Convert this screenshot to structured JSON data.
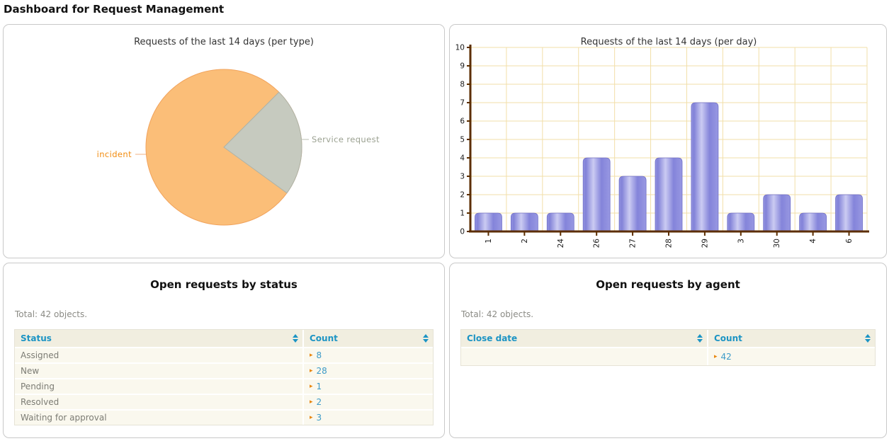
{
  "page_title": "Dashboard for Request Management",
  "pie_panel": {
    "title": "Requests of the last 14 days (per type)"
  },
  "bar_panel": {
    "title": "Requests of the last 14 days (per day)"
  },
  "status_panel": {
    "title": "Open requests by status",
    "total": "Total: 42 objects.",
    "columns": [
      "Status",
      "Count"
    ],
    "rows": [
      [
        "Assigned",
        "8"
      ],
      [
        "New",
        "28"
      ],
      [
        "Pending",
        "1"
      ],
      [
        "Resolved",
        "2"
      ],
      [
        "Waiting for approval",
        "3"
      ]
    ]
  },
  "agent_panel": {
    "title": "Open requests by agent",
    "total": "Total: 42 objects.",
    "columns": [
      "Close date",
      "Count"
    ],
    "rows": [
      [
        "",
        "42"
      ]
    ]
  },
  "colors": {
    "pie_orange": "#fbbe78",
    "pie_orange_stroke": "#f1a35c",
    "pie_gray": "#c6cabf",
    "pie_gray_stroke": "#aeb2a6",
    "pie_label_incident": "#f28c0f",
    "pie_label_service": "#9ba191",
    "grid": "#f2dfa9",
    "axis_brown": "#5c2e00",
    "bar_base": "#8484da",
    "bar_highlight": "#cbcbf2",
    "bar_stroke": "#7070c8",
    "header_blue": "#1c94c4",
    "link_blue": "#3d9bc8",
    "arrow_orange": "#e8860d"
  },
  "chart_data": [
    {
      "type": "pie",
      "title": "Requests of the last 14 days (per type)",
      "labels": [
        "incident",
        "Service request"
      ],
      "values_pct": [
        77.5,
        22.5
      ],
      "colors": [
        "#fbbe78",
        "#c6cabf"
      ],
      "start_deg_gray": 45,
      "legend_position": "callout-labels"
    },
    {
      "type": "bar",
      "title": "Requests of the last 14 days (per day)",
      "categories": [
        "1",
        "2",
        "24",
        "26",
        "27",
        "28",
        "29",
        "3",
        "30",
        "4",
        "6"
      ],
      "values": [
        1,
        1,
        1,
        4,
        3,
        4,
        7,
        1,
        2,
        1,
        2
      ],
      "xlabel": "",
      "ylabel": "",
      "ylim": [
        0,
        10
      ],
      "ytick_step": 1,
      "grid": true
    }
  ]
}
